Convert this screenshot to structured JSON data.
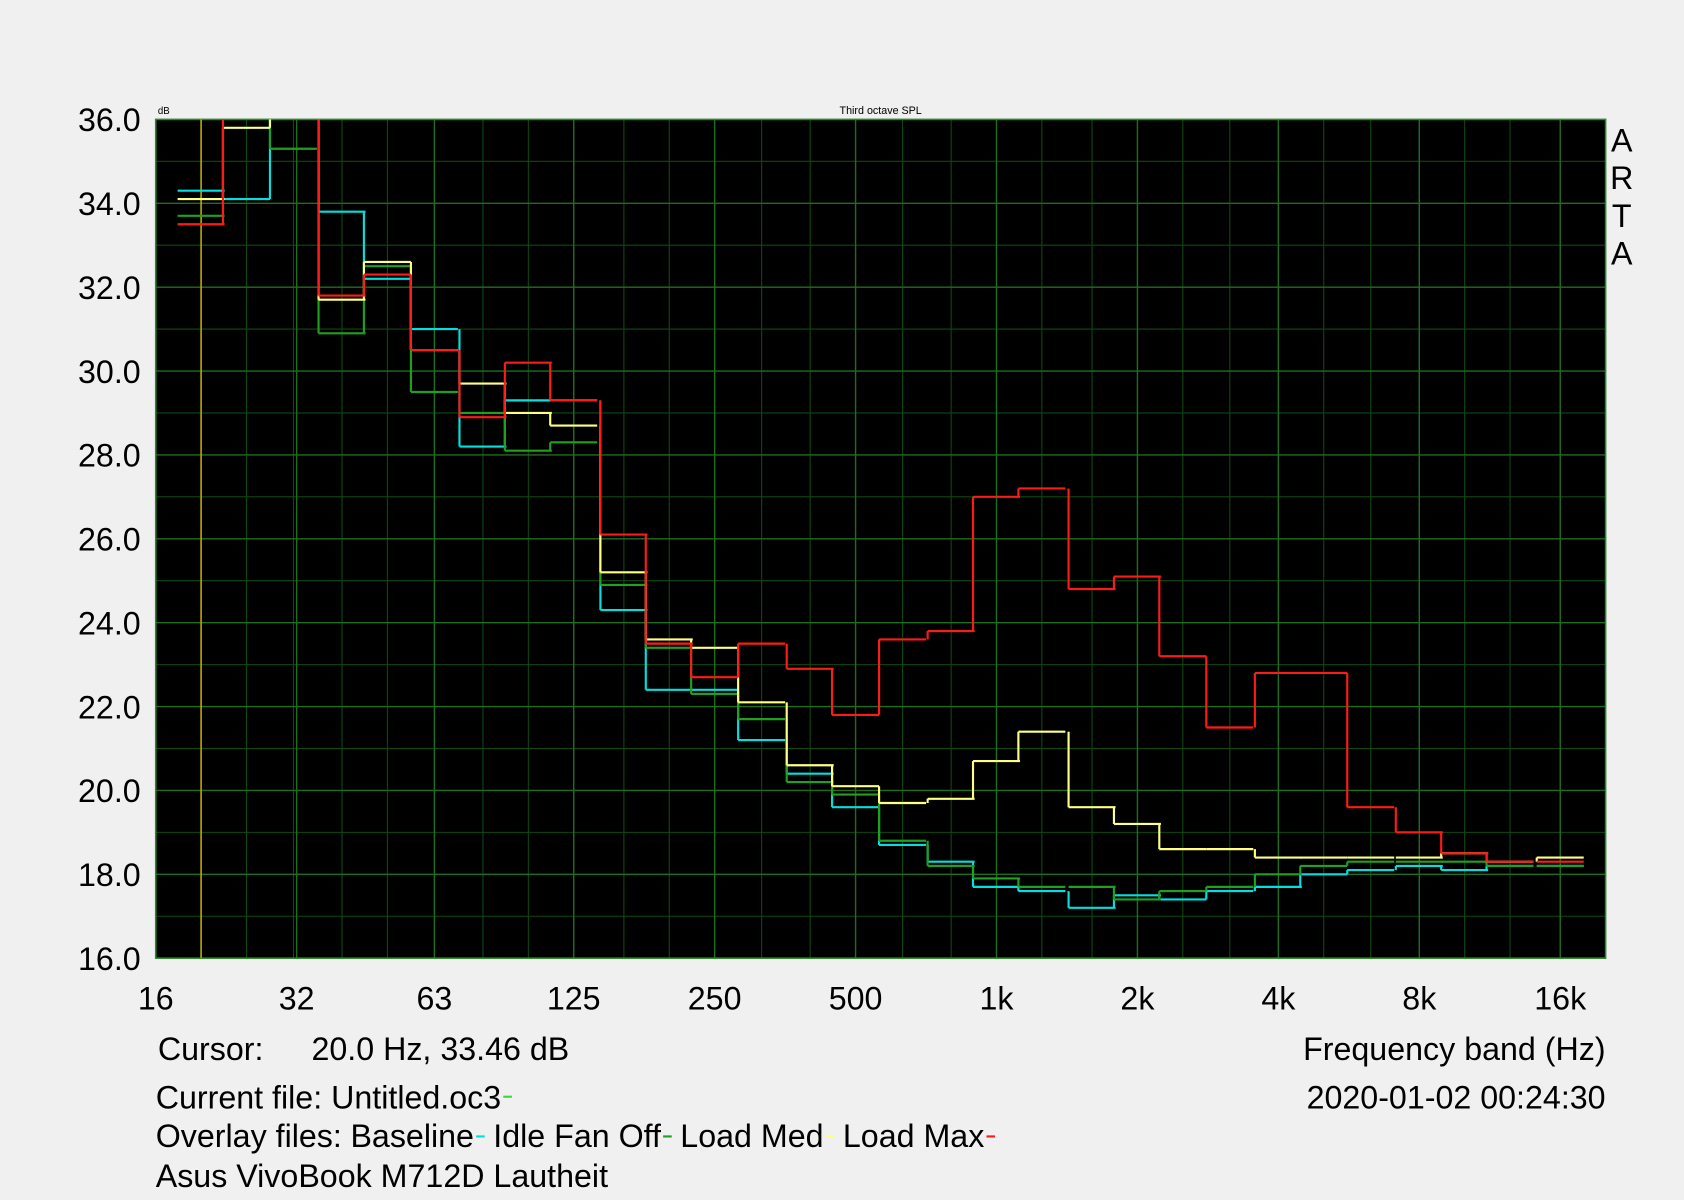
{
  "chart_data": {
    "type": "step",
    "title": "Third octave SPL",
    "y_unit": "dB",
    "logo": [
      "A",
      "R",
      "T",
      "A"
    ],
    "xlabel": "Frequency band (Hz)",
    "xscale": "log",
    "xlim": [
      16,
      20000
    ],
    "xticks": [
      16,
      32,
      63,
      125,
      250,
      500,
      {
        "value": 1000,
        "label": "1k"
      },
      {
        "value": 2000,
        "label": "2k"
      },
      {
        "value": 4000,
        "label": "4k"
      },
      {
        "value": 8000,
        "label": "8k"
      },
      {
        "value": 16000,
        "label": "16k"
      }
    ],
    "ylim": [
      16,
      36
    ],
    "yticks": [
      {
        "value": 16,
        "label": "16.0"
      },
      {
        "value": 18,
        "label": "18.0"
      },
      {
        "value": 20,
        "label": "20.0"
      },
      {
        "value": 22,
        "label": "22.0"
      },
      {
        "value": 24,
        "label": "24.0"
      },
      {
        "value": 26,
        "label": "26.0"
      },
      {
        "value": 28,
        "label": "28.0"
      },
      {
        "value": 30,
        "label": "30.0"
      },
      {
        "value": 32,
        "label": "32.0"
      },
      {
        "value": 34,
        "label": "34.0"
      },
      {
        "value": 36,
        "label": "36.0"
      }
    ],
    "yminor": [
      17,
      19,
      21,
      23,
      25,
      27,
      29,
      31,
      33,
      35
    ],
    "grid": true,
    "cursor": {
      "label": "Cursor:",
      "readout": "20.0 Hz, 33.46 dB",
      "x": 20,
      "color": "#b8a800"
    },
    "current_file": {
      "text": "Current file: Untitled.oc3",
      "color": "#33dd33"
    },
    "overlay_label": "Overlay files:",
    "timestamp": "2020-01-02  00:24:30",
    "note": "Asus VivoBook M712D Lautheit",
    "x": [
      20,
      25,
      31.5,
      40,
      50,
      63,
      80,
      100,
      125,
      160,
      200,
      250,
      315,
      400,
      500,
      630,
      800,
      1000,
      1250,
      1600,
      2000,
      2500,
      3150,
      4000,
      5000,
      6300,
      8000,
      10000,
      12500,
      16000
    ],
    "series": [
      {
        "name": "Baseline",
        "color": "#00e0e0",
        "values": [
          34.3,
          34.1,
          36.3,
          33.8,
          32.2,
          31.0,
          28.2,
          29.3,
          29.3,
          24.3,
          22.4,
          22.4,
          21.2,
          20.4,
          19.6,
          18.7,
          18.3,
          17.7,
          17.6,
          17.2,
          17.5,
          17.4,
          17.6,
          17.7,
          18.0,
          18.1,
          18.2,
          18.1,
          18.2,
          18.2
        ]
      },
      {
        "name": "Idle Fan Off",
        "color": "#1fa01f",
        "values": [
          33.7,
          36.2,
          35.3,
          30.9,
          32.5,
          29.5,
          29.0,
          28.1,
          28.3,
          24.9,
          23.4,
          22.3,
          21.7,
          20.2,
          19.9,
          18.8,
          18.2,
          17.9,
          17.7,
          17.7,
          17.4,
          17.6,
          17.7,
          18.0,
          18.2,
          18.3,
          18.3,
          18.3,
          18.2,
          18.2
        ]
      },
      {
        "name": "Load Med",
        "color": "#ffff80",
        "values": [
          34.1,
          35.8,
          36.3,
          31.7,
          32.6,
          30.5,
          29.7,
          29.0,
          28.7,
          25.2,
          23.6,
          23.4,
          22.1,
          20.6,
          20.1,
          19.7,
          19.8,
          20.7,
          21.4,
          19.6,
          19.2,
          18.6,
          18.6,
          18.4,
          18.4,
          18.4,
          18.4,
          18.5,
          18.3,
          18.4
        ]
      },
      {
        "name": "Load Max",
        "color": "#ff1a1a",
        "values": [
          33.5,
          36.5,
          36.5,
          31.8,
          32.3,
          30.5,
          28.9,
          30.2,
          29.3,
          26.1,
          23.5,
          22.7,
          23.5,
          22.9,
          21.8,
          23.6,
          23.8,
          27.0,
          27.2,
          24.8,
          25.1,
          23.2,
          21.5,
          22.8,
          22.8,
          19.6,
          19.0,
          18.5,
          18.3,
          18.3
        ]
      }
    ]
  }
}
